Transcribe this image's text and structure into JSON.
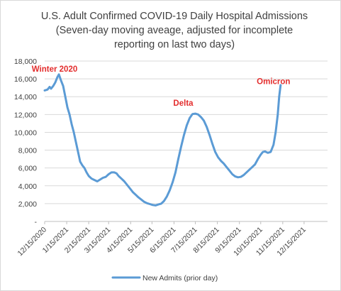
{
  "chart_data": {
    "type": "line",
    "title_lines": [
      "U.S. Adult Confirmed COVID-19 Daily Hospital Admissions",
      "(Seven-day moving aveage, adjusted for incomplete",
      "reporting on last two days)"
    ],
    "y_ticks": [
      "-",
      "2,000",
      "4,000",
      "6,000",
      "8,000",
      "10,000",
      "12,000",
      "14,000",
      "16,000",
      "18,000"
    ],
    "y_tick_values": [
      0,
      2000,
      4000,
      6000,
      8000,
      10000,
      12000,
      14000,
      16000,
      18000
    ],
    "ylim": [
      0,
      18000
    ],
    "x_ticks": [
      "12/15/2020",
      "1/15/2021",
      "2/15/2021",
      "3/15/2021",
      "4/15/2021",
      "5/15/2021",
      "6/15/2021",
      "7/15/2021",
      "8/15/2021",
      "9/15/2021",
      "10/15/2021",
      "11/15/2021",
      "12/15/2021"
    ],
    "x_tick_days": [
      0,
      31,
      62,
      90,
      121,
      151,
      182,
      212,
      243,
      274,
      304,
      335,
      365
    ],
    "xlim_days": [
      0,
      398
    ],
    "grid": "horizontal",
    "legend_position": "bottom",
    "series": [
      {
        "name": "New Admits (prior day)",
        "color": "#5b9bd5",
        "points": [
          [
            0,
            14700
          ],
          [
            4,
            14800
          ],
          [
            7,
            15100
          ],
          [
            9,
            14900
          ],
          [
            12,
            15200
          ],
          [
            15,
            15600
          ],
          [
            18,
            16200
          ],
          [
            20,
            16500
          ],
          [
            23,
            15800
          ],
          [
            26,
            15200
          ],
          [
            29,
            14000
          ],
          [
            32,
            12800
          ],
          [
            35,
            12000
          ],
          [
            38,
            10900
          ],
          [
            41,
            10000
          ],
          [
            44,
            8900
          ],
          [
            47,
            7800
          ],
          [
            50,
            6700
          ],
          [
            53,
            6300
          ],
          [
            56,
            6000
          ],
          [
            59,
            5500
          ],
          [
            62,
            5100
          ],
          [
            66,
            4800
          ],
          [
            70,
            4650
          ],
          [
            74,
            4500
          ],
          [
            78,
            4700
          ],
          [
            82,
            4900
          ],
          [
            86,
            5000
          ],
          [
            90,
            5300
          ],
          [
            94,
            5500
          ],
          [
            98,
            5500
          ],
          [
            101,
            5400
          ],
          [
            104,
            5100
          ],
          [
            108,
            4800
          ],
          [
            112,
            4500
          ],
          [
            116,
            4100
          ],
          [
            120,
            3700
          ],
          [
            124,
            3300
          ],
          [
            128,
            3000
          ],
          [
            132,
            2700
          ],
          [
            136,
            2450
          ],
          [
            140,
            2200
          ],
          [
            144,
            2050
          ],
          [
            148,
            1950
          ],
          [
            152,
            1850
          ],
          [
            156,
            1800
          ],
          [
            160,
            1900
          ],
          [
            164,
            2000
          ],
          [
            168,
            2300
          ],
          [
            172,
            2800
          ],
          [
            176,
            3500
          ],
          [
            180,
            4400
          ],
          [
            184,
            5500
          ],
          [
            188,
            7000
          ],
          [
            192,
            8400
          ],
          [
            196,
            9700
          ],
          [
            200,
            10800
          ],
          [
            204,
            11600
          ],
          [
            208,
            12050
          ],
          [
            212,
            12100
          ],
          [
            216,
            12000
          ],
          [
            220,
            11700
          ],
          [
            224,
            11300
          ],
          [
            228,
            10600
          ],
          [
            232,
            9700
          ],
          [
            236,
            8700
          ],
          [
            240,
            7800
          ],
          [
            244,
            7200
          ],
          [
            248,
            6800
          ],
          [
            252,
            6500
          ],
          [
            256,
            6100
          ],
          [
            260,
            5700
          ],
          [
            264,
            5300
          ],
          [
            268,
            5050
          ],
          [
            272,
            4950
          ],
          [
            276,
            5000
          ],
          [
            280,
            5200
          ],
          [
            284,
            5500
          ],
          [
            288,
            5800
          ],
          [
            292,
            6100
          ],
          [
            296,
            6400
          ],
          [
            300,
            7000
          ],
          [
            304,
            7500
          ],
          [
            307,
            7800
          ],
          [
            310,
            7850
          ],
          [
            314,
            7700
          ],
          [
            318,
            7800
          ],
          [
            322,
            8600
          ],
          [
            325,
            10000
          ],
          [
            328,
            12000
          ],
          [
            330,
            14000
          ],
          [
            332,
            15300
          ]
        ]
      }
    ],
    "annotations": [
      {
        "text": "Winter 2020",
        "day": 14,
        "y": 16800
      },
      {
        "text": "Delta",
        "day": 195,
        "y": 13000
      },
      {
        "text": "Omicron",
        "day": 322,
        "y": 15400
      }
    ]
  }
}
